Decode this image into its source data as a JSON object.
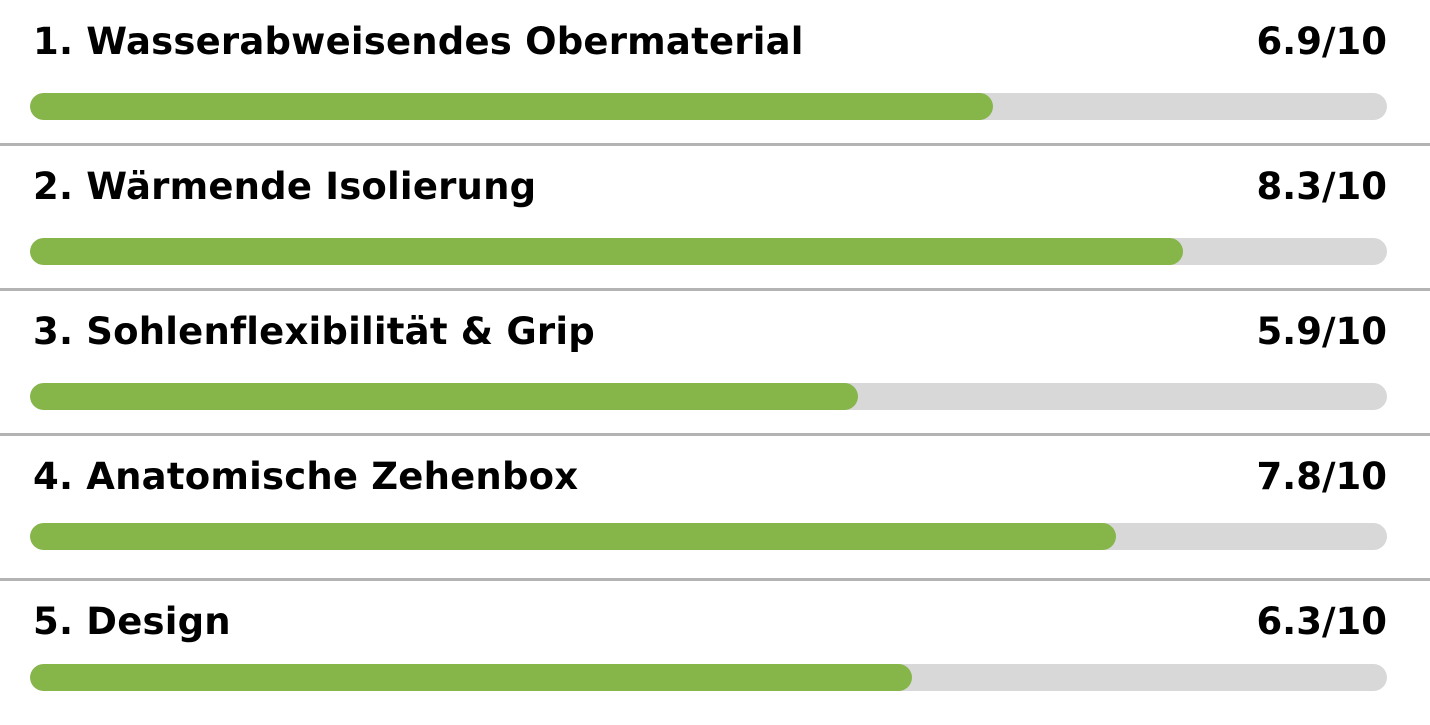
{
  "colors": {
    "fill": "#86b64a",
    "track": "#d8d8d8",
    "divider": "#b3b3b3"
  },
  "ratings": [
    {
      "label": "1. Wasserabweisendes Obermaterial",
      "score_text": "6.9/10",
      "value": 6.9,
      "max": 10
    },
    {
      "label": "2. Wärmende Isolierung",
      "score_text": "8.3/10",
      "value": 8.3,
      "max": 10
    },
    {
      "label": "3. Sohlenflexibilität & Grip",
      "score_text": "5.9/10",
      "value": 5.9,
      "max": 10
    },
    {
      "label": "4. Anatomische Zehenbox",
      "score_text": "7.8/10",
      "value": 7.8,
      "max": 10
    },
    {
      "label": "5. Design",
      "score_text": "6.3/10",
      "value": 6.3,
      "max": 10
    }
  ]
}
